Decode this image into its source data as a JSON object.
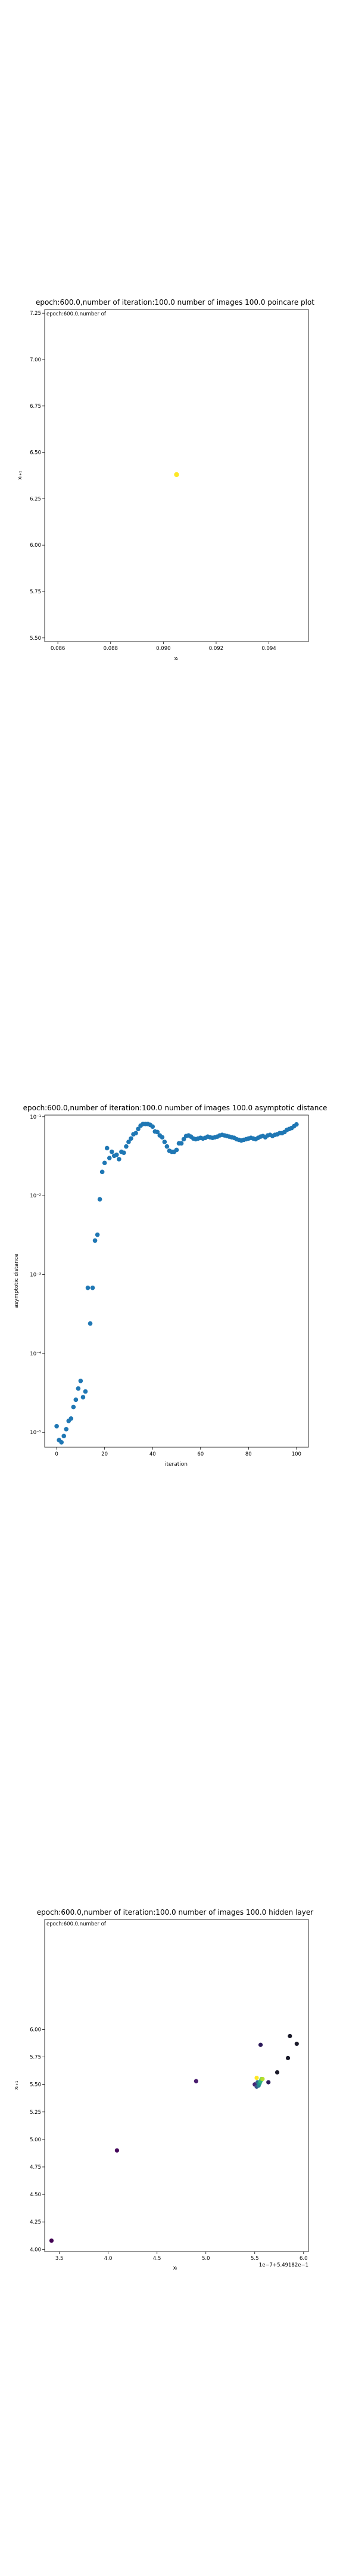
{
  "chart_data": [
    {
      "type": "scatter",
      "title": "epoch:600.0,number of iteration:100.0 number of images 100.0 poincare plot",
      "overlay_text": "epoch:600.0,number of",
      "xlabel": "xᵢ",
      "ylabel": "xᵢ₊₁",
      "xlim": [
        0.0855,
        0.0955
      ],
      "ylim": [
        5.48,
        7.27
      ],
      "xticks": [
        "0.086",
        "0.088",
        "0.090",
        "0.092",
        "0.094"
      ],
      "yticks": [
        "5.50",
        "5.75",
        "6.00",
        "6.25",
        "6.50",
        "6.75",
        "7.00",
        "7.25"
      ],
      "point_color": "#fde725",
      "points": [
        [
          0.0905,
          6.38
        ]
      ]
    },
    {
      "type": "scatter",
      "title": "epoch:600.0,number of iteration:100.0  number of images 100.0 asymptotic distance",
      "xlabel": "iteration",
      "ylabel": "asymptotic distance",
      "y_scale": "log",
      "xlim": [
        -5,
        105
      ],
      "xticks": [
        "0",
        "20",
        "40",
        "60",
        "80",
        "100"
      ],
      "yticks": [
        "10⁻¹",
        "10⁻²",
        "10⁻³",
        "10⁻⁴",
        "10⁻⁵"
      ],
      "point_color": "#1f77b4",
      "x": [
        0,
        1,
        2,
        3,
        4,
        5,
        6,
        7,
        8,
        9,
        10,
        11,
        12,
        13,
        14,
        15,
        16,
        17,
        18,
        19,
        20,
        21,
        22,
        23,
        24,
        25,
        26,
        27,
        28,
        29,
        30,
        31,
        32,
        33,
        34,
        35,
        36,
        37,
        38,
        39,
        40,
        41,
        42,
        43,
        44,
        45,
        46,
        47,
        48,
        49,
        50,
        51,
        52,
        53,
        54,
        55,
        56,
        57,
        58,
        59,
        60,
        61,
        62,
        63,
        64,
        65,
        66,
        67,
        68,
        69,
        70,
        71,
        72,
        73,
        74,
        75,
        76,
        77,
        78,
        79,
        80,
        81,
        82,
        83,
        84,
        85,
        86,
        87,
        88,
        89,
        90,
        91,
        92,
        93,
        94,
        95,
        96,
        97,
        98,
        99,
        100
      ],
      "values": [
        1.2e-05,
        8e-06,
        7.5e-06,
        9e-06,
        1.1e-05,
        1.4e-05,
        1.5e-05,
        2.1e-05,
        2.6e-05,
        3.6e-05,
        4.5e-05,
        2.8e-05,
        3.3e-05,
        0.00068,
        0.00024,
        0.00068,
        0.0027,
        0.0032,
        0.009,
        0.02,
        0.026,
        0.04,
        0.03,
        0.036,
        0.032,
        0.033,
        0.029,
        0.036,
        0.035,
        0.042,
        0.048,
        0.053,
        0.06,
        0.062,
        0.07,
        0.077,
        0.081,
        0.081,
        0.081,
        0.079,
        0.075,
        0.065,
        0.064,
        0.058,
        0.055,
        0.048,
        0.042,
        0.037,
        0.036,
        0.036,
        0.038,
        0.046,
        0.046,
        0.052,
        0.057,
        0.058,
        0.056,
        0.053,
        0.052,
        0.053,
        0.054,
        0.053,
        0.054,
        0.056,
        0.055,
        0.054,
        0.055,
        0.056,
        0.058,
        0.059,
        0.058,
        0.057,
        0.056,
        0.055,
        0.054,
        0.052,
        0.051,
        0.05,
        0.051,
        0.052,
        0.053,
        0.054,
        0.053,
        0.052,
        0.054,
        0.056,
        0.057,
        0.055,
        0.058,
        0.059,
        0.057,
        0.059,
        0.06,
        0.062,
        0.062,
        0.064,
        0.068,
        0.07,
        0.072,
        0.076,
        0.08
      ]
    },
    {
      "type": "scatter",
      "title": "epoch:600.0,number of iteration:100.0  number of images 100.0 hidden layer",
      "overlay_text": "epoch:600.0,number of",
      "xlabel": "xᵢ",
      "ylabel": "xᵢ₊₁",
      "offset_text": "1e−7+5.49182e−1",
      "xlim": [
        3.35,
        6.05
      ],
      "ylim": [
        3.98,
        7.0
      ],
      "xticks": [
        "3.5",
        "4.0",
        "4.5",
        "5.0",
        "5.5",
        "6.0"
      ],
      "yticks": [
        "4.00",
        "4.25",
        "4.50",
        "4.75",
        "5.00",
        "5.25",
        "5.50",
        "5.75",
        "6.00"
      ],
      "points": [
        {
          "x": 3.42,
          "y": 4.08,
          "color": "#440154"
        },
        {
          "x": 4.09,
          "y": 4.9,
          "color": "#46085c"
        },
        {
          "x": 4.9,
          "y": 5.53,
          "color": "#481c6e"
        },
        {
          "x": 5.5,
          "y": 5.5,
          "color": "#482576"
        },
        {
          "x": 5.52,
          "y": 5.48,
          "color": "#3b528b"
        },
        {
          "x": 5.53,
          "y": 5.52,
          "color": "#31688e"
        },
        {
          "x": 5.54,
          "y": 5.49,
          "color": "#26828e"
        },
        {
          "x": 5.55,
          "y": 5.51,
          "color": "#1f9e89"
        },
        {
          "x": 5.56,
          "y": 5.53,
          "color": "#35b779"
        },
        {
          "x": 5.57,
          "y": 5.55,
          "color": "#6ece58"
        },
        {
          "x": 5.56,
          "y": 5.86,
          "color": "#2a1858"
        },
        {
          "x": 5.58,
          "y": 5.55,
          "color": "#b5de2b"
        },
        {
          "x": 5.64,
          "y": 5.52,
          "color": "#2b1d5a"
        },
        {
          "x": 5.73,
          "y": 5.61,
          "color": "#1a1a2a"
        },
        {
          "x": 5.84,
          "y": 5.74,
          "color": "#1a1a2a"
        },
        {
          "x": 5.86,
          "y": 5.94,
          "color": "#1a1a2a"
        },
        {
          "x": 5.93,
          "y": 5.87,
          "color": "#1a1a2a"
        },
        {
          "x": 5.52,
          "y": 5.56,
          "color": "#fde725"
        }
      ]
    }
  ]
}
